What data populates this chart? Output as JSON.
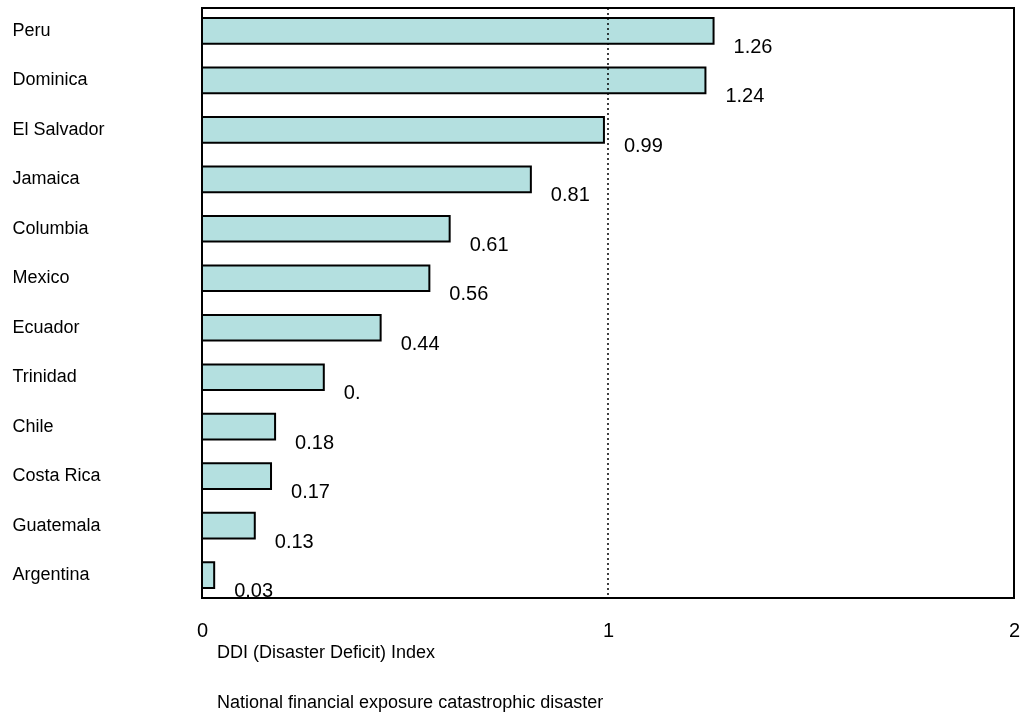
{
  "chart_data": {
    "type": "bar",
    "orientation": "horizontal",
    "categories": [
      "Peru",
      "Dominica",
      "El Salvador",
      "Jamaica",
      "Columbia",
      "Mexico",
      "Ecuador",
      "Trinidad",
      "Chile",
      "Costa Rica",
      "Guatemala",
      "Argentina"
    ],
    "values": [
      1.26,
      1.24,
      0.99,
      0.81,
      0.61,
      0.56,
      0.44,
      0.3,
      0.18,
      0.17,
      0.13,
      0.03
    ],
    "value_labels": [
      "1.26",
      "1.24",
      "0.99",
      "0.81",
      "0.61",
      "0.56",
      "0.44",
      "0.",
      "0.18",
      "0.17",
      "0.13",
      "0.03"
    ],
    "color": "#b4e0e0",
    "xlim": [
      0,
      2
    ],
    "xticks": [
      0,
      1,
      2
    ],
    "xlabel": "DDI (Disaster Deficit) Index",
    "annotations": [
      "National financial exposure catastrophic disaster"
    ],
    "ref_lines": [
      {
        "axis": "x",
        "value": 1,
        "line_style": "dotted"
      }
    ],
    "grid": false
  }
}
